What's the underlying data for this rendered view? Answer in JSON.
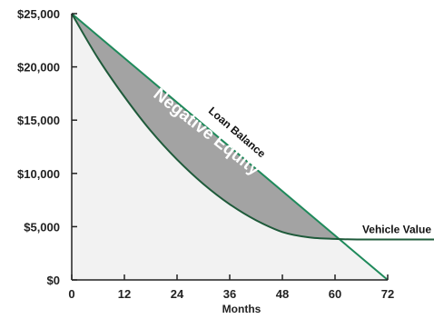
{
  "chart_data": {
    "type": "area",
    "xlabel": "Months",
    "ylabel": "",
    "xlim": [
      0,
      72
    ],
    "ylim": [
      0,
      25000
    ],
    "x_ticks": [
      "0",
      "12",
      "24",
      "36",
      "48",
      "60",
      "72"
    ],
    "y_ticks": [
      "$0",
      "$5,000",
      "$10,000",
      "$15,000",
      "$20,000",
      "$25,000"
    ],
    "grid": false,
    "series": [
      {
        "name": "Loan Balance",
        "color": "#1f8a5b",
        "points": [
          [
            0,
            25000
          ],
          [
            72,
            0
          ]
        ]
      },
      {
        "name": "Vehicle Value",
        "color": "#1e5a3a",
        "points": [
          [
            0,
            25000
          ],
          [
            6,
            20800
          ],
          [
            12,
            17200
          ],
          [
            18,
            14000
          ],
          [
            24,
            11300
          ],
          [
            30,
            9000
          ],
          [
            36,
            7100
          ],
          [
            42,
            5600
          ],
          [
            48,
            4500
          ],
          [
            54,
            4000
          ],
          [
            60,
            3850
          ],
          [
            65,
            3800
          ],
          [
            72,
            3800
          ],
          [
            86,
            3800
          ]
        ]
      }
    ],
    "annotations": [
      {
        "text": "Negative Equity",
        "fill_color": "#a3a3a3"
      }
    ],
    "colors": {
      "background_area": "#f2f2f2",
      "negative_equity_fill": "#a3a3a3",
      "axis": "#222222"
    }
  }
}
